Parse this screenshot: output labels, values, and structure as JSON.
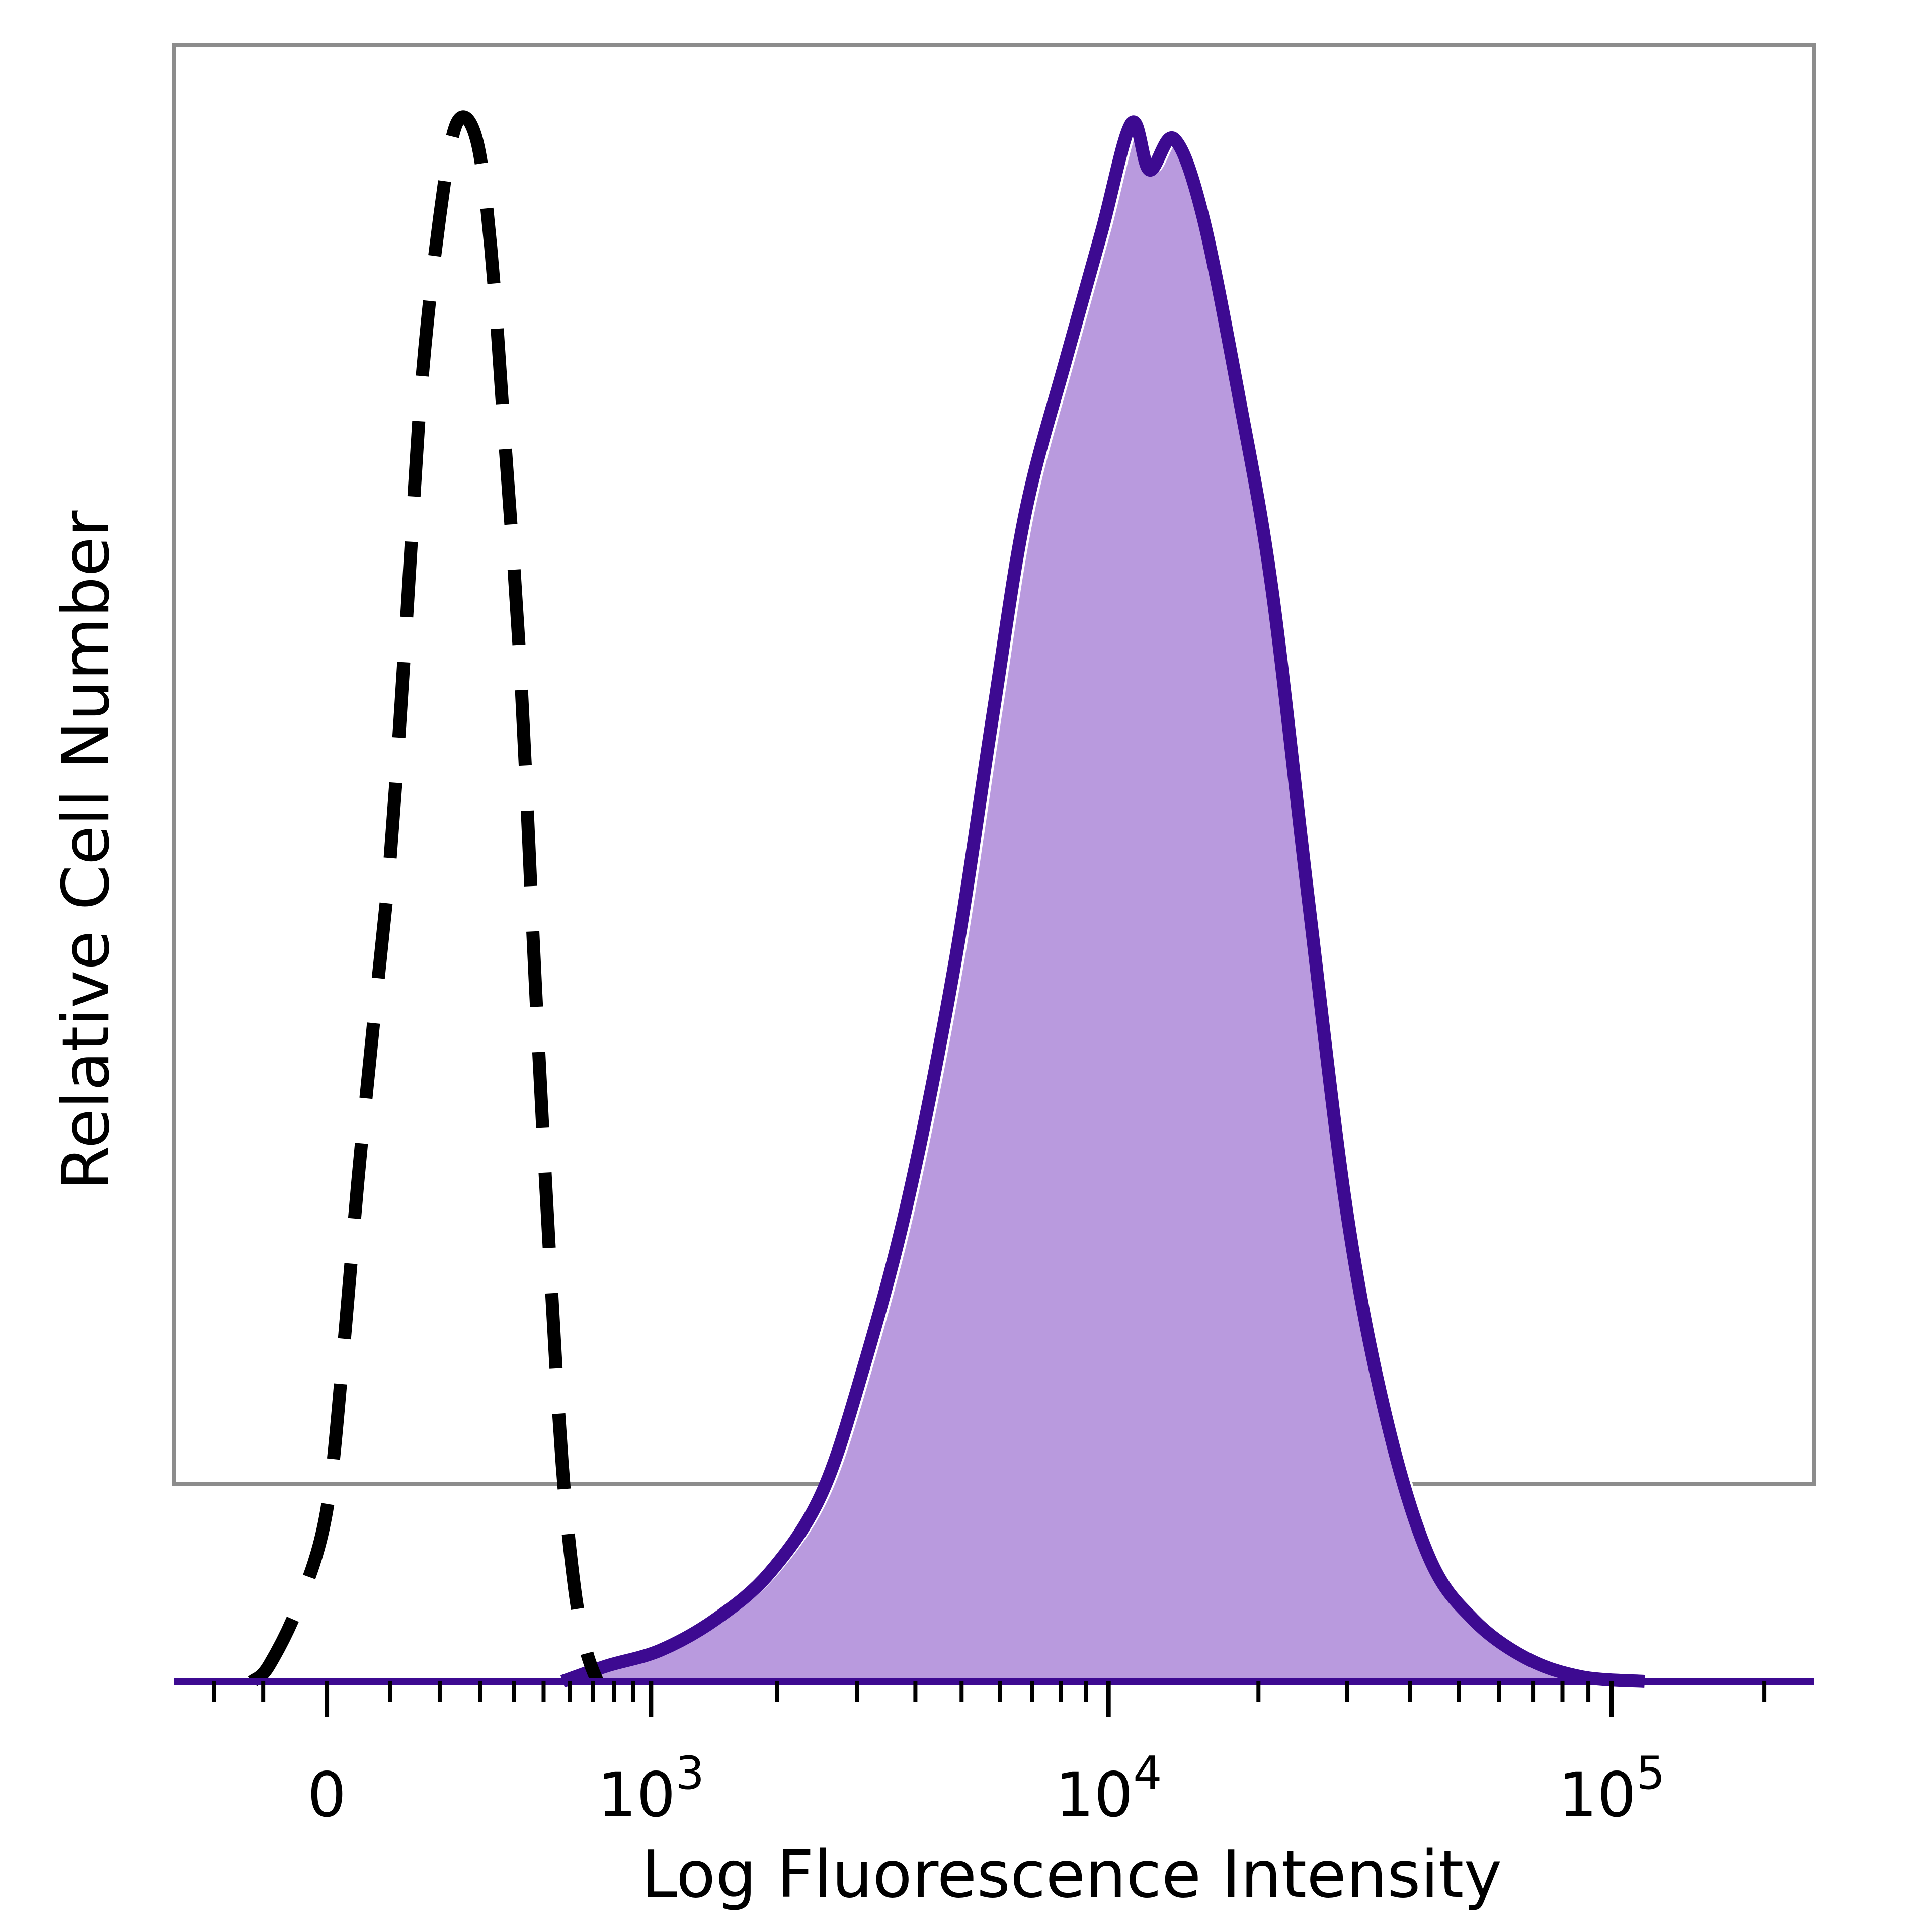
{
  "chart_data": {
    "type": "area",
    "xlabel": "Log Fluorescence Intensity",
    "ylabel": "Relative Cell Number",
    "x_scale": "biexponential",
    "xlim": [
      -300,
      250000
    ],
    "ylim": [
      0,
      1.05
    ],
    "grid": false,
    "x_ticks": [
      {
        "value": 0,
        "base": "0",
        "exp": ""
      },
      {
        "value": 1000,
        "base": "10",
        "exp": "3"
      },
      {
        "value": 10000,
        "base": "10",
        "exp": "4"
      },
      {
        "value": 100000,
        "base": "10",
        "exp": "5"
      }
    ],
    "series": [
      {
        "style": "dashed",
        "color": "#000000",
        "filled": false,
        "points": [
          [
            -120,
            0.0
          ],
          [
            -90,
            0.01
          ],
          [
            -40,
            0.05
          ],
          [
            0,
            0.11
          ],
          [
            25,
            0.22
          ],
          [
            45,
            0.32
          ],
          [
            70,
            0.42
          ],
          [
            100,
            0.53
          ],
          [
            130,
            0.68
          ],
          [
            160,
            0.83
          ],
          [
            200,
            0.94
          ],
          [
            240,
            1.0
          ],
          [
            290,
            0.99
          ],
          [
            330,
            0.92
          ],
          [
            370,
            0.8
          ],
          [
            420,
            0.65
          ],
          [
            470,
            0.45
          ],
          [
            520,
            0.28
          ],
          [
            570,
            0.14
          ],
          [
            620,
            0.06
          ],
          [
            670,
            0.02
          ],
          [
            720,
            0.0
          ]
        ]
      },
      {
        "style": "solid",
        "color": "#3d0a91",
        "fill": "#b99ade",
        "filled": true,
        "points": [
          [
            600,
            0.0
          ],
          [
            800,
            0.01
          ],
          [
            1100,
            0.02
          ],
          [
            1500,
            0.04
          ],
          [
            2000,
            0.07
          ],
          [
            2600,
            0.12
          ],
          [
            3200,
            0.2
          ],
          [
            4000,
            0.31
          ],
          [
            5000,
            0.46
          ],
          [
            6000,
            0.62
          ],
          [
            7000,
            0.75
          ],
          [
            8500,
            0.85
          ],
          [
            10000,
            0.93
          ],
          [
            11500,
            1.0
          ],
          [
            12500,
            0.97
          ],
          [
            14000,
            0.99
          ],
          [
            16000,
            0.94
          ],
          [
            19000,
            0.82
          ],
          [
            22000,
            0.7
          ],
          [
            26000,
            0.5
          ],
          [
            31000,
            0.3
          ],
          [
            37000,
            0.17
          ],
          [
            45000,
            0.08
          ],
          [
            55000,
            0.04
          ],
          [
            70000,
            0.015
          ],
          [
            90000,
            0.003
          ],
          [
            120000,
            0.0
          ]
        ]
      }
    ]
  }
}
